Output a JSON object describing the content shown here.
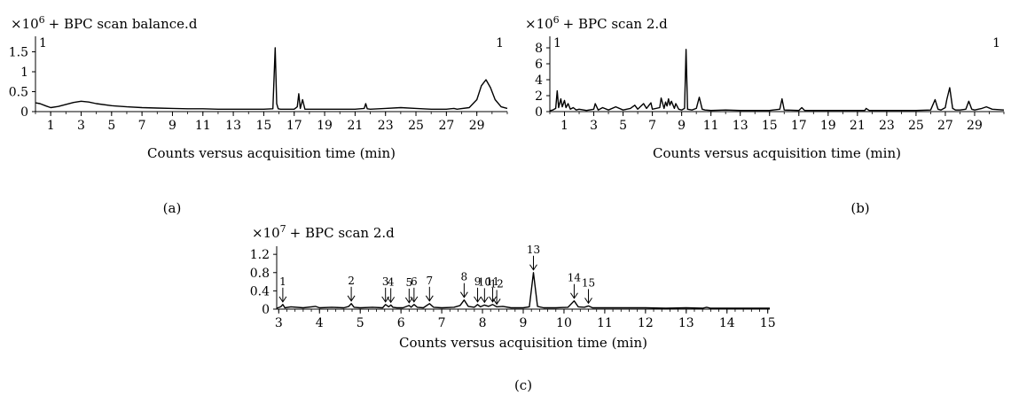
{
  "charts": [
    {
      "id": "a",
      "type": "line",
      "title": "+ BPC scan balance.d",
      "multiplier_base": "×10",
      "multiplier_exp": "6",
      "corner_left": "1",
      "corner_right": "1",
      "xlabel": "Counts versus acquisition time (min)",
      "panel_label": "(a)",
      "xlim": [
        0,
        31
      ],
      "ylim": [
        0,
        1.8
      ],
      "xticks": [
        1,
        3,
        5,
        7,
        9,
        11,
        13,
        15,
        17,
        19,
        21,
        23,
        25,
        27,
        29
      ],
      "yticks": [
        0,
        0.5,
        1,
        1.5
      ],
      "ytick_labels": [
        "0",
        "0.5",
        "1",
        "1.5"
      ],
      "x": [
        0,
        0.3,
        0.7,
        1.0,
        1.5,
        2.0,
        2.5,
        3.0,
        3.5,
        4.0,
        5.0,
        6.0,
        7.0,
        8.0,
        9.0,
        10.0,
        11.0,
        12.0,
        13.0,
        14.0,
        15.0,
        15.6,
        15.75,
        15.85,
        15.95,
        16.1,
        17.0,
        17.2,
        17.3,
        17.4,
        17.55,
        17.7,
        18.0,
        19.0,
        20.0,
        21.0,
        21.6,
        21.7,
        21.8,
        22.0,
        23.0,
        24.0,
        25.0,
        26.0,
        27.0,
        27.5,
        27.7,
        27.9,
        28.5,
        29.0,
        29.3,
        29.6,
        29.9,
        30.2,
        30.6,
        31.0
      ],
      "y": [
        0.22,
        0.2,
        0.14,
        0.1,
        0.13,
        0.18,
        0.23,
        0.26,
        0.24,
        0.2,
        0.15,
        0.12,
        0.1,
        0.09,
        0.08,
        0.07,
        0.07,
        0.06,
        0.06,
        0.06,
        0.06,
        0.07,
        1.6,
        0.2,
        0.07,
        0.06,
        0.06,
        0.12,
        0.45,
        0.08,
        0.3,
        0.06,
        0.06,
        0.06,
        0.06,
        0.06,
        0.08,
        0.2,
        0.07,
        0.06,
        0.08,
        0.1,
        0.08,
        0.06,
        0.06,
        0.08,
        0.06,
        0.07,
        0.1,
        0.3,
        0.65,
        0.8,
        0.6,
        0.3,
        0.12,
        0.08
      ]
    },
    {
      "id": "b",
      "type": "line",
      "title": "+ BPC scan 2.d",
      "multiplier_base": "×10",
      "multiplier_exp": "6",
      "corner_left": "1",
      "corner_right": "1",
      "xlabel": "Counts versus acquisition time (min)",
      "panel_label": "(b)",
      "xlim": [
        0,
        31
      ],
      "ylim": [
        0,
        9
      ],
      "xticks": [
        1,
        3,
        5,
        7,
        9,
        11,
        13,
        15,
        17,
        19,
        21,
        23,
        25,
        27,
        29
      ],
      "yticks": [
        0,
        2,
        4,
        6,
        8
      ],
      "ytick_labels": [
        "0",
        "2",
        "4",
        "6",
        "8"
      ],
      "x": [
        0,
        0.2,
        0.4,
        0.5,
        0.6,
        0.75,
        0.85,
        1.0,
        1.1,
        1.25,
        1.4,
        1.6,
        1.8,
        2.0,
        2.5,
        3.0,
        3.1,
        3.3,
        3.6,
        4.0,
        4.5,
        5.0,
        5.5,
        5.8,
        6.0,
        6.4,
        6.6,
        6.9,
        7.0,
        7.5,
        7.6,
        7.8,
        7.9,
        8.0,
        8.1,
        8.2,
        8.3,
        8.5,
        8.6,
        8.8,
        9.0,
        9.2,
        9.3,
        9.4,
        9.7,
        10.0,
        10.2,
        10.4,
        10.6,
        11.0,
        12.0,
        13.0,
        14.0,
        15.0,
        15.7,
        15.85,
        16.0,
        17.0,
        17.2,
        17.4,
        18.0,
        19.0,
        20.0,
        21.0,
        21.5,
        21.6,
        21.8,
        22.5,
        23.0,
        24.0,
        25.0,
        26.0,
        26.3,
        26.5,
        26.7,
        27.0,
        27.1,
        27.3,
        27.5,
        27.7,
        28.0,
        28.4,
        28.6,
        28.8,
        29.0,
        29.5,
        29.8,
        30.2,
        31.0
      ],
      "y": [
        0.1,
        0.2,
        0.4,
        2.6,
        0.5,
        1.6,
        0.6,
        1.4,
        0.5,
        1.0,
        0.3,
        0.5,
        0.2,
        0.3,
        0.15,
        0.3,
        1.0,
        0.2,
        0.5,
        0.2,
        0.6,
        0.2,
        0.4,
        0.8,
        0.3,
        1.0,
        0.4,
        1.1,
        0.3,
        0.5,
        1.7,
        0.4,
        1.2,
        0.7,
        1.6,
        0.8,
        1.3,
        0.4,
        1.0,
        0.3,
        0.2,
        0.4,
        7.8,
        0.3,
        0.2,
        0.4,
        1.8,
        0.3,
        0.2,
        0.15,
        0.2,
        0.15,
        0.15,
        0.15,
        0.3,
        1.6,
        0.2,
        0.15,
        0.5,
        0.15,
        0.15,
        0.15,
        0.15,
        0.15,
        0.15,
        0.4,
        0.15,
        0.15,
        0.15,
        0.15,
        0.15,
        0.2,
        1.5,
        0.3,
        0.2,
        0.5,
        1.5,
        3.0,
        0.4,
        0.2,
        0.2,
        0.3,
        1.3,
        0.3,
        0.2,
        0.4,
        0.6,
        0.3,
        0.2
      ]
    },
    {
      "id": "c",
      "type": "line",
      "title": "+ BPC scan 2.d",
      "multiplier_base": "×10",
      "multiplier_exp": "7",
      "xlabel": "Counts versus acquisition time (min)",
      "panel_label": "(c)",
      "xlim": [
        2.95,
        15.05
      ],
      "ylim": [
        0,
        1.3
      ],
      "xticks": [
        3,
        4,
        5,
        6,
        7,
        8,
        9,
        10,
        11,
        12,
        13,
        14,
        15
      ],
      "yticks": [
        0,
        0.4,
        0.8,
        1.2
      ],
      "ytick_labels": [
        "0",
        "0.4",
        "0.8",
        "1.2"
      ],
      "x": [
        2.95,
        3.05,
        3.1,
        3.15,
        3.3,
        3.6,
        3.9,
        4.0,
        4.3,
        4.6,
        4.72,
        4.78,
        4.85,
        5.0,
        5.3,
        5.55,
        5.62,
        5.7,
        5.75,
        5.8,
        5.9,
        6.05,
        6.2,
        6.25,
        6.32,
        6.4,
        6.55,
        6.7,
        6.8,
        7.0,
        7.3,
        7.45,
        7.55,
        7.65,
        7.8,
        7.88,
        7.95,
        8.05,
        8.15,
        8.25,
        8.35,
        8.5,
        8.7,
        9.0,
        9.15,
        9.25,
        9.35,
        9.5,
        9.8,
        10.1,
        10.25,
        10.35,
        10.5,
        10.6,
        10.7,
        11.0,
        11.5,
        12.0,
        12.5,
        13.0,
        13.4,
        13.5,
        13.6,
        14.0,
        14.5,
        15.05
      ],
      "y": [
        0.02,
        0.05,
        0.1,
        0.03,
        0.05,
        0.03,
        0.06,
        0.03,
        0.04,
        0.03,
        0.06,
        0.12,
        0.04,
        0.03,
        0.04,
        0.03,
        0.1,
        0.05,
        0.09,
        0.04,
        0.03,
        0.03,
        0.08,
        0.04,
        0.1,
        0.04,
        0.03,
        0.12,
        0.04,
        0.03,
        0.04,
        0.08,
        0.2,
        0.06,
        0.04,
        0.1,
        0.05,
        0.09,
        0.06,
        0.1,
        0.05,
        0.06,
        0.03,
        0.03,
        0.05,
        0.8,
        0.06,
        0.03,
        0.03,
        0.04,
        0.18,
        0.05,
        0.04,
        0.07,
        0.03,
        0.03,
        0.03,
        0.03,
        0.02,
        0.03,
        0.02,
        0.04,
        0.02,
        0.02,
        0.02,
        0.02
      ],
      "peaks": [
        {
          "label": "1",
          "x": 3.1,
          "y": 0.1
        },
        {
          "label": "2",
          "x": 4.78,
          "y": 0.12
        },
        {
          "label": "3",
          "x": 5.62,
          "y": 0.1
        },
        {
          "label": "4",
          "x": 5.75,
          "y": 0.09
        },
        {
          "label": "5",
          "x": 6.2,
          "y": 0.08
        },
        {
          "label": "6",
          "x": 6.32,
          "y": 0.1
        },
        {
          "label": "7",
          "x": 6.7,
          "y": 0.12
        },
        {
          "label": "8",
          "x": 7.55,
          "y": 0.2
        },
        {
          "label": "9",
          "x": 7.88,
          "y": 0.1
        },
        {
          "label": "10",
          "x": 8.05,
          "y": 0.09
        },
        {
          "label": "11",
          "x": 8.25,
          "y": 0.1
        },
        {
          "label": "12",
          "x": 8.35,
          "y": 0.05
        },
        {
          "label": "13",
          "x": 9.25,
          "y": 0.8
        },
        {
          "label": "14",
          "x": 10.25,
          "y": 0.18
        },
        {
          "label": "15",
          "x": 10.6,
          "y": 0.07
        }
      ]
    }
  ]
}
